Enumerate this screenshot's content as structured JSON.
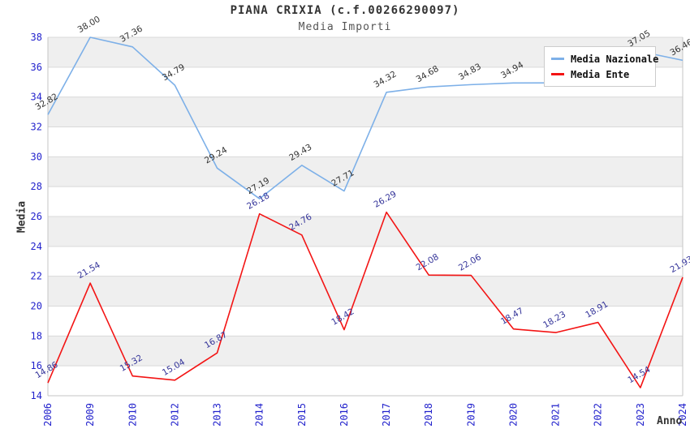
{
  "chart_data": {
    "type": "line",
    "title": "PIANA CRIXIA (c.f.00266290097)",
    "subtitle": "Media Importi",
    "xlabel": "Anno",
    "ylabel": "Media",
    "categories": [
      "2006",
      "2009",
      "2010",
      "2012",
      "2013",
      "2014",
      "2015",
      "2016",
      "2017",
      "2018",
      "2019",
      "2020",
      "2021",
      "2022",
      "2023",
      "2024"
    ],
    "series": [
      {
        "name": "Media Nazionale",
        "color": "#7db0e8",
        "label_color": "#333333",
        "values": [
          32.82,
          38.0,
          37.36,
          34.79,
          29.24,
          27.19,
          29.43,
          27.71,
          34.32,
          34.68,
          34.83,
          34.94,
          34.95,
          34.97,
          37.05,
          36.46
        ],
        "labels": [
          "32.82",
          "38.00",
          "37.36",
          "34.79",
          "29.24",
          "27.19",
          "29.43",
          "27.71",
          "34.32",
          "34.68",
          "34.83",
          "34.94",
          "",
          "",
          "37.05",
          "36.46"
        ]
      },
      {
        "name": "Media Ente",
        "color": "#f31414",
        "label_color": "#333399",
        "values": [
          14.86,
          21.54,
          15.32,
          15.04,
          16.87,
          26.18,
          24.76,
          18.42,
          26.29,
          22.08,
          22.06,
          18.47,
          18.23,
          18.91,
          14.54,
          21.93
        ],
        "labels": [
          "14.86",
          "21.54",
          "15.32",
          "15.04",
          "16.87",
          "26.18",
          "24.76",
          "18.42",
          "26.29",
          "22.08",
          "22.06",
          "18.47",
          "18.23",
          "18.91",
          "14.54",
          "21.93"
        ]
      }
    ],
    "ylim": [
      14,
      38
    ],
    "ytick_step": 2,
    "xtick_rotation": -90,
    "data_label_rotation": -30,
    "legend_position": "top-right",
    "grid": true,
    "colors": {
      "band": "#efefef",
      "grid": "#d9d9d9",
      "axis": "#c6c6c6",
      "tick": "#2222cc",
      "title": "#333333",
      "subtitle": "#555555",
      "legend_border": "#cccccc"
    }
  }
}
